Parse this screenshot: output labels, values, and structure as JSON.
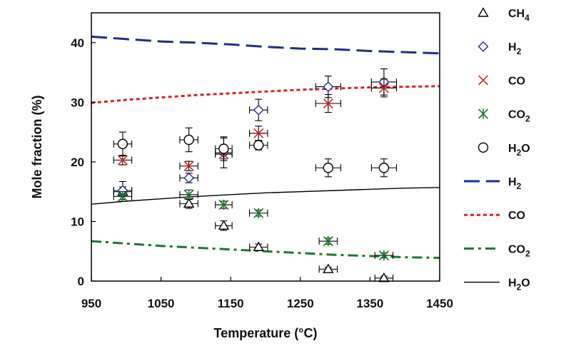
{
  "chart_data": {
    "type": "scatter",
    "xlabel": "Temperature (°C)",
    "ylabel": "Mole fraction (%)",
    "xlim": [
      950,
      1450
    ],
    "ylim": [
      0,
      45
    ],
    "xticks": [
      "950",
      "1050",
      "1150",
      "1250",
      "1350",
      "1450"
    ],
    "yticks": [
      "0",
      "10",
      "20",
      "30",
      "40"
    ],
    "grid": false,
    "legend_position": "right",
    "colors": {
      "CH4": "#000000",
      "H2": "#1f2f8f",
      "CO": "#e02020",
      "CO2": "#1a7a2a",
      "H2O": "#000000"
    },
    "markers": {
      "CH4": "triangle-open",
      "H2": "diamond-open",
      "CO": "x-cross",
      "CO2": "asterisk",
      "H2O": "circle-open"
    },
    "series": [
      {
        "name": "CH4",
        "kind": "points",
        "points": [
          {
            "x": 995,
            "y": 15.0,
            "xerr": 13,
            "yerr": 0.8
          },
          {
            "x": 1090,
            "y": 13.0,
            "xerr": 13,
            "yerr": 0.8
          },
          {
            "x": 1140,
            "y": 9.3,
            "xerr": 12,
            "yerr": 0.8
          },
          {
            "x": 1190,
            "y": 5.7,
            "xerr": 13,
            "yerr": 0.5
          },
          {
            "x": 1290,
            "y": 2.0,
            "xerr": 13,
            "yerr": 0.3
          },
          {
            "x": 1370,
            "y": 0.5,
            "xerr": 13,
            "yerr": 0.3
          }
        ]
      },
      {
        "name": "H2",
        "kind": "points",
        "points": [
          {
            "x": 995,
            "y": 15.2,
            "xerr": 13,
            "yerr": 1.5
          },
          {
            "x": 1090,
            "y": 17.3,
            "xerr": 13,
            "yerr": 0.8
          },
          {
            "x": 1140,
            "y": 21.5,
            "xerr": 12,
            "yerr": 2.5
          },
          {
            "x": 1190,
            "y": 28.7,
            "xerr": 13,
            "yerr": 1.8
          },
          {
            "x": 1290,
            "y": 32.6,
            "xerr": 18,
            "yerr": 1.8
          },
          {
            "x": 1370,
            "y": 33.4,
            "xerr": 18,
            "yerr": 2.2
          }
        ]
      },
      {
        "name": "CO",
        "kind": "points",
        "points": [
          {
            "x": 995,
            "y": 20.3,
            "xerr": 13,
            "yerr": 0.8
          },
          {
            "x": 1090,
            "y": 19.3,
            "xerr": 13,
            "yerr": 0.8
          },
          {
            "x": 1140,
            "y": 21.3,
            "xerr": 12,
            "yerr": 0.8
          },
          {
            "x": 1190,
            "y": 24.8,
            "xerr": 13,
            "yerr": 1.2
          },
          {
            "x": 1290,
            "y": 29.8,
            "xerr": 18,
            "yerr": 1.5
          },
          {
            "x": 1370,
            "y": 32.4,
            "xerr": 18,
            "yerr": 1.5
          }
        ]
      },
      {
        "name": "CO2",
        "kind": "points",
        "points": [
          {
            "x": 995,
            "y": 14.2,
            "xerr": 13,
            "yerr": 0.8
          },
          {
            "x": 1090,
            "y": 14.5,
            "xerr": 13,
            "yerr": 0.8
          },
          {
            "x": 1140,
            "y": 12.8,
            "xerr": 12,
            "yerr": 0.6
          },
          {
            "x": 1190,
            "y": 11.4,
            "xerr": 13,
            "yerr": 0.5
          },
          {
            "x": 1290,
            "y": 6.7,
            "xerr": 13,
            "yerr": 0.5
          },
          {
            "x": 1370,
            "y": 4.3,
            "xerr": 13,
            "yerr": 0.4
          }
        ]
      },
      {
        "name": "H2O",
        "kind": "points",
        "points": [
          {
            "x": 995,
            "y": 23.0,
            "xerr": 13,
            "yerr": 2.0
          },
          {
            "x": 1090,
            "y": 23.7,
            "xerr": 13,
            "yerr": 2.0
          },
          {
            "x": 1140,
            "y": 22.2,
            "xerr": 12,
            "yerr": 2.0
          },
          {
            "x": 1190,
            "y": 22.8,
            "xerr": 13,
            "yerr": 0.8
          },
          {
            "x": 1290,
            "y": 19.0,
            "xerr": 18,
            "yerr": 1.5
          },
          {
            "x": 1370,
            "y": 19.0,
            "xerr": 18,
            "yerr": 1.5
          }
        ]
      },
      {
        "name": "H2",
        "kind": "line",
        "style": "dash",
        "points": [
          {
            "x": 950,
            "y": 41.0
          },
          {
            "x": 1000,
            "y": 40.6
          },
          {
            "x": 1050,
            "y": 40.2
          },
          {
            "x": 1100,
            "y": 40.0
          },
          {
            "x": 1150,
            "y": 39.7
          },
          {
            "x": 1200,
            "y": 39.3
          },
          {
            "x": 1250,
            "y": 39.0
          },
          {
            "x": 1300,
            "y": 38.9
          },
          {
            "x": 1350,
            "y": 38.6
          },
          {
            "x": 1400,
            "y": 38.4
          },
          {
            "x": 1450,
            "y": 38.2
          }
        ]
      },
      {
        "name": "CO",
        "kind": "line",
        "style": "dot",
        "points": [
          {
            "x": 950,
            "y": 29.9
          },
          {
            "x": 1000,
            "y": 30.4
          },
          {
            "x": 1050,
            "y": 30.8
          },
          {
            "x": 1100,
            "y": 31.2
          },
          {
            "x": 1150,
            "y": 31.5
          },
          {
            "x": 1200,
            "y": 31.8
          },
          {
            "x": 1250,
            "y": 32.1
          },
          {
            "x": 1300,
            "y": 32.3
          },
          {
            "x": 1350,
            "y": 32.5
          },
          {
            "x": 1400,
            "y": 32.6
          },
          {
            "x": 1450,
            "y": 32.7
          }
        ]
      },
      {
        "name": "CO2",
        "kind": "line",
        "style": "dashdot",
        "points": [
          {
            "x": 950,
            "y": 6.7
          },
          {
            "x": 1000,
            "y": 6.3
          },
          {
            "x": 1050,
            "y": 5.9
          },
          {
            "x": 1100,
            "y": 5.6
          },
          {
            "x": 1150,
            "y": 5.3
          },
          {
            "x": 1200,
            "y": 5.0
          },
          {
            "x": 1250,
            "y": 4.7
          },
          {
            "x": 1300,
            "y": 4.4
          },
          {
            "x": 1350,
            "y": 4.2
          },
          {
            "x": 1400,
            "y": 4.0
          },
          {
            "x": 1450,
            "y": 3.9
          }
        ]
      },
      {
        "name": "H2O",
        "kind": "line",
        "style": "solid",
        "points": [
          {
            "x": 950,
            "y": 12.9
          },
          {
            "x": 1000,
            "y": 13.4
          },
          {
            "x": 1050,
            "y": 13.8
          },
          {
            "x": 1100,
            "y": 14.2
          },
          {
            "x": 1150,
            "y": 14.5
          },
          {
            "x": 1200,
            "y": 14.8
          },
          {
            "x": 1250,
            "y": 15.0
          },
          {
            "x": 1300,
            "y": 15.2
          },
          {
            "x": 1350,
            "y": 15.4
          },
          {
            "x": 1400,
            "y": 15.6
          },
          {
            "x": 1450,
            "y": 15.7
          }
        ]
      }
    ],
    "legend": [
      {
        "series": "CH4",
        "kind": "marker",
        "base": "CH",
        "sub": "4"
      },
      {
        "series": "H2",
        "kind": "marker",
        "base": "H",
        "sub": "2"
      },
      {
        "series": "CO",
        "kind": "marker",
        "base": "CO",
        "sub": ""
      },
      {
        "series": "CO2",
        "kind": "marker",
        "base": "CO",
        "sub": "2"
      },
      {
        "series": "H2O",
        "kind": "marker",
        "base": "H",
        "sub": "2",
        "tail": "O"
      },
      {
        "series": "H2",
        "kind": "line",
        "base": "H",
        "sub": "2"
      },
      {
        "series": "CO",
        "kind": "line",
        "base": "CO",
        "sub": ""
      },
      {
        "series": "CO2",
        "kind": "line",
        "base": "CO",
        "sub": "2"
      },
      {
        "series": "H2O",
        "kind": "line",
        "base": "H",
        "sub": "2",
        "tail": "O"
      }
    ]
  }
}
